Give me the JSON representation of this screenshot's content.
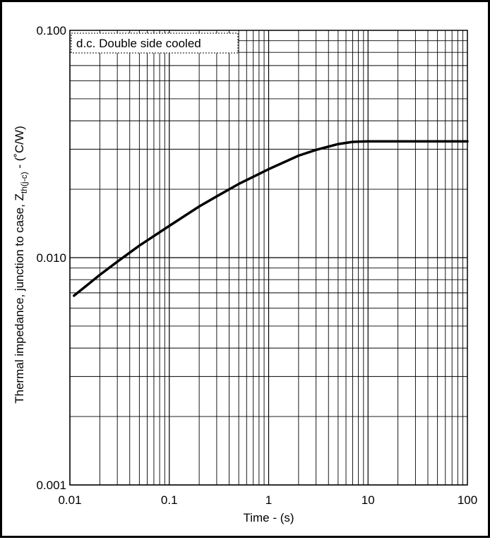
{
  "chart_data": {
    "type": "line",
    "title": "",
    "xlabel": "Time - (s)",
    "ylabel_parts": {
      "main": "Thermal impedance, junction to case, Z",
      "sub": "th(j-c)",
      "tail": " - (˚C/W)"
    },
    "x_scale": "log",
    "y_scale": "log",
    "xlim": [
      0.01,
      100
    ],
    "ylim": [
      0.001,
      0.1
    ],
    "grid": true,
    "x_ticks": [
      {
        "value": 0.01,
        "label": "0.01"
      },
      {
        "value": 0.1,
        "label": "0.1"
      },
      {
        "value": 1,
        "label": "1"
      },
      {
        "value": 10,
        "label": "10"
      },
      {
        "value": 100,
        "label": "100"
      }
    ],
    "y_ticks": [
      {
        "value": 0.001,
        "label": "0.001"
      },
      {
        "value": 0.01,
        "label": "0.010"
      },
      {
        "value": 0.1,
        "label": "0.100"
      }
    ],
    "legend_text": "d.c. Double side cooled",
    "legend_position": "top-left",
    "series": [
      {
        "color": "#000000",
        "x": [
          0.011,
          0.02,
          0.03,
          0.05,
          0.1,
          0.2,
          0.3,
          0.5,
          1,
          2,
          3,
          5,
          7,
          10,
          20,
          50,
          100
        ],
        "y": [
          0.0068,
          0.0084,
          0.0096,
          0.0113,
          0.0138,
          0.0168,
          0.0186,
          0.0211,
          0.0245,
          0.0281,
          0.0298,
          0.0316,
          0.0323,
          0.0325,
          0.0325,
          0.0325,
          0.0325
        ]
      }
    ]
  }
}
